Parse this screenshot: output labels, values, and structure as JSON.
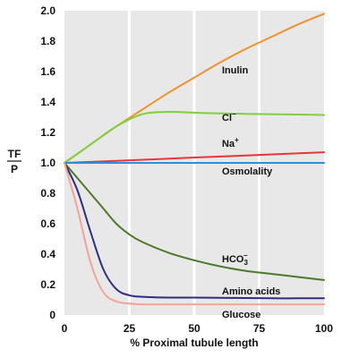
{
  "chart_data": {
    "type": "line",
    "title": "",
    "xlabel": "% Proximal tubule length",
    "ylabel": "TF / P",
    "ylabel_top": "TF",
    "ylabel_bottom": "P",
    "xlim": [
      0,
      100
    ],
    "ylim": [
      0,
      2.0
    ],
    "x_ticks": [
      "0",
      "25",
      "50",
      "75",
      "100"
    ],
    "y_ticks": [
      "0",
      "0.2",
      "0.4",
      "0.6",
      "0.8",
      "1.0",
      "1.2",
      "1.4",
      "1.6",
      "1.8",
      "2.0"
    ],
    "grid": true,
    "background": "#e8e8e8",
    "grid_color": "#ffffff",
    "series": [
      {
        "name": "Inulin",
        "color": "#f0922a",
        "x": [
          0,
          10,
          20,
          30,
          40,
          50,
          60,
          70,
          80,
          90,
          100
        ],
        "y": [
          1.0,
          1.12,
          1.24,
          1.35,
          1.46,
          1.56,
          1.66,
          1.75,
          1.83,
          1.91,
          1.98
        ]
      },
      {
        "name": "Cl",
        "label_base": "Cl",
        "label_sup": "−",
        "color": "#7fd03c",
        "x": [
          0,
          10,
          20,
          30,
          40,
          50,
          60,
          70,
          80,
          90,
          100
        ],
        "y": [
          1.0,
          1.12,
          1.24,
          1.32,
          1.335,
          1.33,
          1.325,
          1.322,
          1.32,
          1.318,
          1.315
        ]
      },
      {
        "name": "Na",
        "label_base": "Na",
        "label_sup": "+",
        "color": "#e8343c",
        "x": [
          0,
          25,
          50,
          75,
          100
        ],
        "y": [
          1.0,
          1.017,
          1.035,
          1.052,
          1.07
        ]
      },
      {
        "name": "Osmolality",
        "color": "#2a8fdc",
        "x": [
          0,
          100
        ],
        "y": [
          1.0,
          1.0
        ]
      },
      {
        "name": "HCO3",
        "label_base": "HCO",
        "label_sub": "3",
        "label_sup": "−",
        "color": "#4a7a2a",
        "x": [
          0,
          5,
          10,
          15,
          20,
          25,
          30,
          40,
          50,
          60,
          70,
          80,
          90,
          100
        ],
        "y": [
          1.0,
          0.9,
          0.8,
          0.7,
          0.6,
          0.53,
          0.48,
          0.41,
          0.36,
          0.32,
          0.29,
          0.27,
          0.25,
          0.23
        ]
      },
      {
        "name": "Amino acids",
        "color": "#2e2e80",
        "x": [
          0,
          5,
          10,
          15,
          20,
          25,
          30,
          40,
          50,
          60,
          70,
          80,
          90,
          100
        ],
        "y": [
          1.0,
          0.82,
          0.55,
          0.3,
          0.17,
          0.13,
          0.12,
          0.115,
          0.115,
          0.113,
          0.112,
          0.11,
          0.11,
          0.11
        ]
      },
      {
        "name": "Glucose",
        "color": "#f2a39a",
        "x": [
          0,
          5,
          10,
          15,
          20,
          25,
          30,
          40,
          50,
          60,
          70,
          80,
          90,
          100
        ],
        "y": [
          1.0,
          0.7,
          0.35,
          0.15,
          0.09,
          0.075,
          0.07,
          0.07,
          0.07,
          0.07,
          0.07,
          0.07,
          0.07,
          0.07
        ]
      }
    ]
  }
}
